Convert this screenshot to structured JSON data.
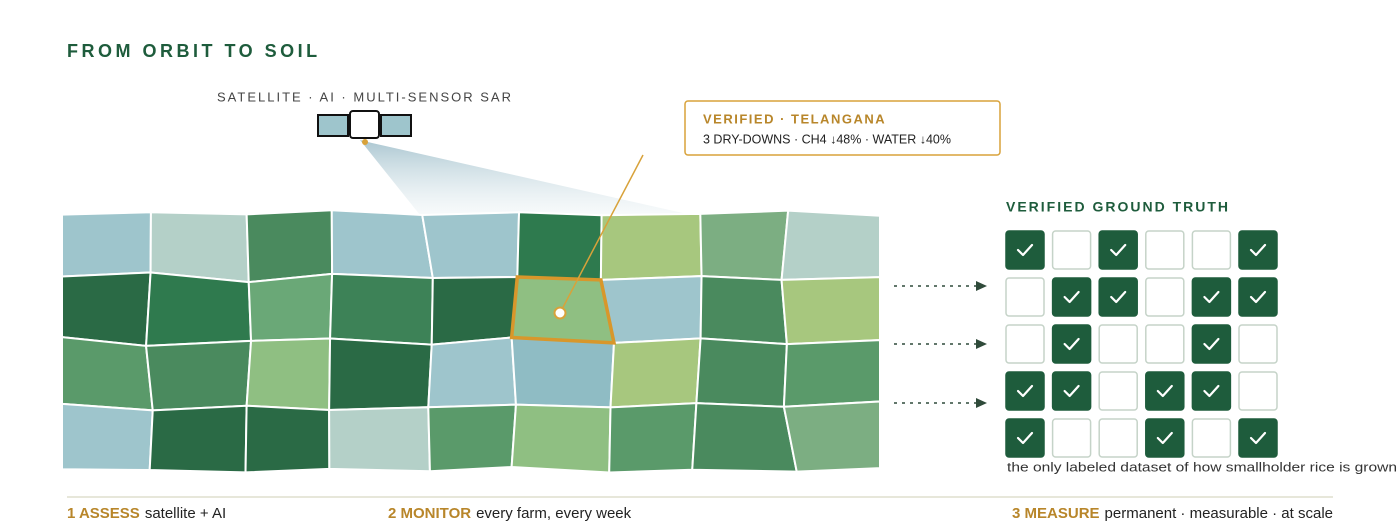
{
  "title": "FROM ORBIT TO SOIL",
  "satellite_label": "SATELLITE · AI · MULTI-SENSOR SAR",
  "callout": {
    "title": "VERIFIED · TELANGANA",
    "detail": "3 DRY-DOWNS · CH4 ↓48% · WATER ↓40%"
  },
  "fields": {
    "highlight": [
      1,
      5
    ],
    "colors": [
      [
        "#9ec5cc",
        "#b4d0c8",
        "#4a8a5e",
        "#9ec5cc",
        "#9ec5cc",
        "#2e7a4e",
        "#a7c77e",
        "#7cae82",
        "#b4d0c8"
      ],
      [
        "#2a6a45",
        "#2f7a4e",
        "#6aa877",
        "#3d8257",
        "#2a6a45",
        "#8fbf82",
        "#9ec5cc",
        "#4a8a5e",
        "#a7c77e"
      ],
      [
        "#5a9a6a",
        "#4a8a5e",
        "#8fbf82",
        "#2a6a45",
        "#9ec5cc",
        "#8fbcc4",
        "#a7c77e",
        "#4a8a5e",
        "#5a9a6a"
      ],
      [
        "#9ec5cc",
        "#2a6a45",
        "#2a6a45",
        "#b4d0c8",
        "#5a9a6a",
        "#8fbf82",
        "#5a9a6a",
        "#4a8a5e",
        "#7cae82"
      ]
    ]
  },
  "ground_truth": {
    "title": "VERIFIED GROUND TRUTH",
    "grid": [
      [
        true,
        false,
        true,
        false,
        false,
        true
      ],
      [
        false,
        true,
        true,
        false,
        true,
        true
      ],
      [
        false,
        true,
        false,
        false,
        true,
        false
      ],
      [
        true,
        true,
        false,
        true,
        true,
        false
      ],
      [
        true,
        false,
        false,
        true,
        false,
        true
      ]
    ],
    "caption": "the only labeled dataset of how smallholder rice is grown"
  },
  "steps": [
    {
      "label": "1 ASSESS",
      "text": "satellite + AI"
    },
    {
      "label": "2 MONITOR",
      "text": "every farm, every week"
    },
    {
      "label": "3 MEASURE",
      "text": "permanent · measurable · at scale"
    }
  ]
}
